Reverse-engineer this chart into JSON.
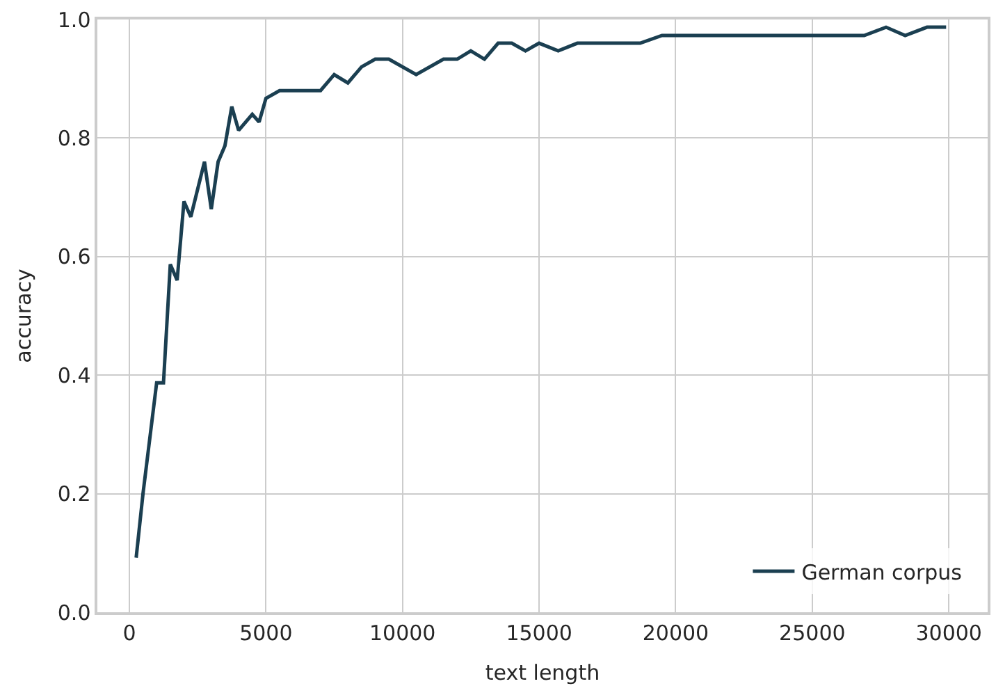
{
  "chart_data": {
    "type": "line",
    "xlabel": "text length",
    "ylabel": "accuracy",
    "x": [
      250,
      500,
      1000,
      1250,
      1500,
      1750,
      2000,
      2250,
      2750,
      3000,
      3250,
      3500,
      3750,
      4000,
      4500,
      4750,
      5000,
      5500,
      7000,
      7500,
      8000,
      8500,
      9000,
      9500,
      10500,
      11500,
      12000,
      12500,
      13000,
      13500,
      14000,
      14500,
      15000,
      15700,
      16400,
      18700,
      19500,
      26900,
      27700,
      28400,
      29200,
      29900
    ],
    "series": [
      {
        "name": "German corpus",
        "color": "#1b3f51",
        "values": [
          0.092,
          0.2,
          0.387,
          0.387,
          0.587,
          0.56,
          0.693,
          0.667,
          0.76,
          0.68,
          0.76,
          0.787,
          0.853,
          0.813,
          0.84,
          0.827,
          0.867,
          0.88,
          0.88,
          0.907,
          0.893,
          0.92,
          0.933,
          0.933,
          0.907,
          0.933,
          0.933,
          0.947,
          0.933,
          0.96,
          0.96,
          0.947,
          0.96,
          0.947,
          0.96,
          0.96,
          0.973,
          0.973,
          0.987,
          0.973,
          0.987,
          0.987
        ]
      }
    ],
    "xlim": [
      -1170,
      31420
    ],
    "ylim": [
      0,
      1.0
    ],
    "xticks": [
      0,
      5000,
      10000,
      15000,
      20000,
      25000,
      30000
    ],
    "yticks": [
      {
        "value": 0,
        "label": "0.0"
      },
      {
        "value": 0.2,
        "label": "0.2"
      },
      {
        "value": 0.4,
        "label": "0.4"
      },
      {
        "value": 0.6,
        "label": "0.6"
      },
      {
        "value": 0.8,
        "label": "0.8"
      },
      {
        "value": 1.0,
        "label": "1.0"
      }
    ],
    "grid": true,
    "legend": "bottom right",
    "marker": "none",
    "line_style": "solid"
  }
}
